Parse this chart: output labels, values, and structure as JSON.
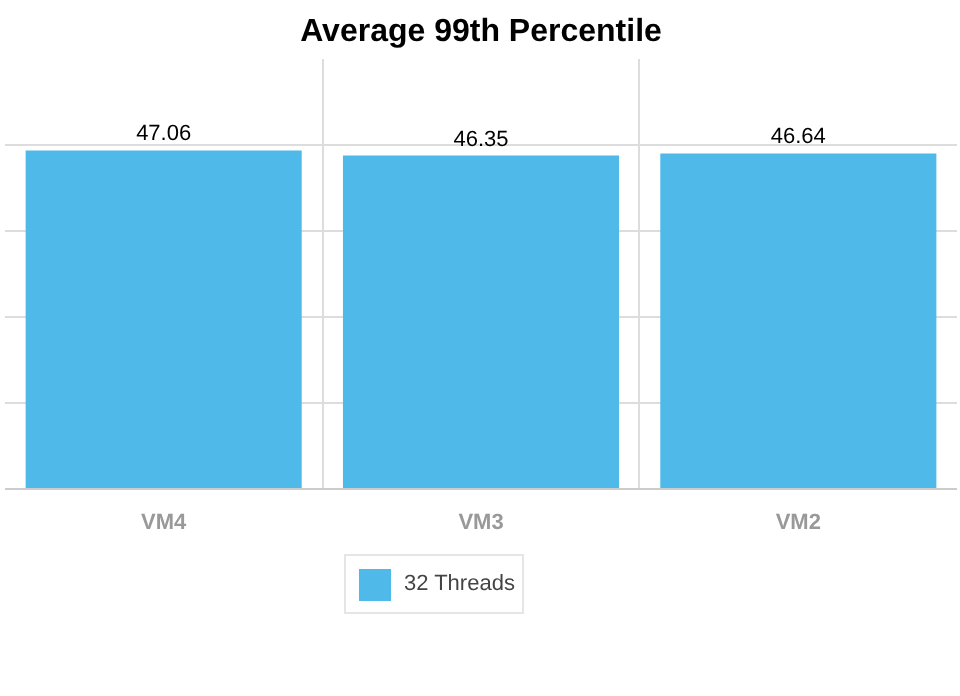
{
  "chart_data": {
    "type": "bar",
    "title": "Average 99th Percentile",
    "categories": [
      "VM4",
      "VM3",
      "VM2"
    ],
    "series": [
      {
        "name": "32 Threads",
        "color": "#4fb9e9",
        "values": [
          47.06,
          46.35,
          46.64
        ]
      }
    ],
    "tick_labels": "x",
    "grid": true,
    "data_labels": true,
    "legend": "bottom"
  }
}
